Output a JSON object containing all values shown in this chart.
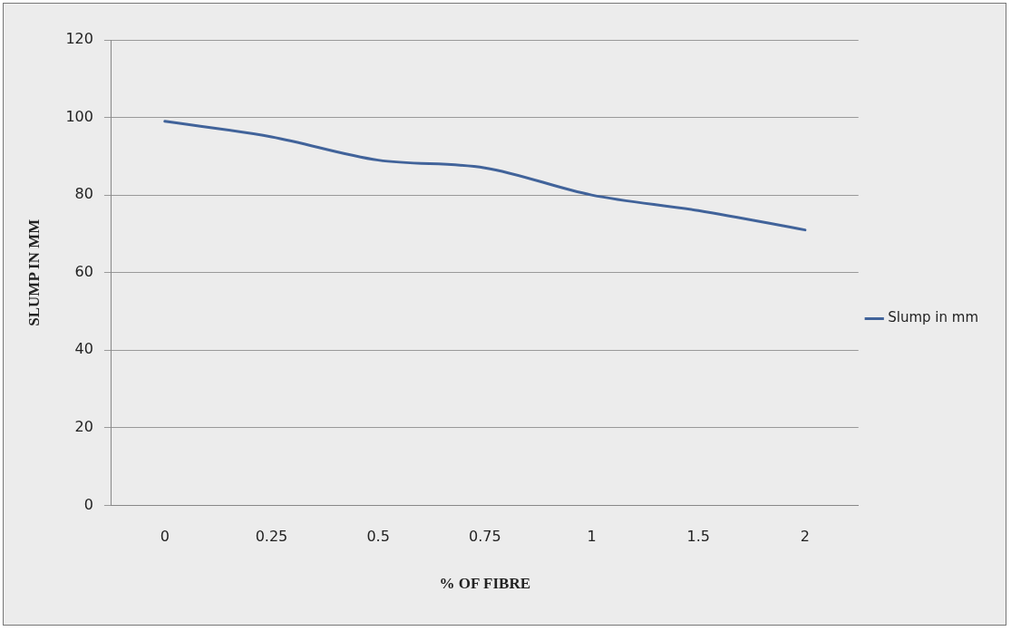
{
  "chart_data": {
    "type": "line",
    "xlabel": "% OF FIBRE",
    "ylabel": "SLUMP IN MM",
    "categories": [
      "0",
      "0.25",
      "0.5",
      "0.75",
      "1",
      "1.5",
      "2"
    ],
    "series": [
      {
        "name": "Slump in mm",
        "color": "#41639a",
        "values": [
          99,
          95,
          89,
          87,
          80,
          76,
          71
        ]
      }
    ],
    "ylim": [
      0,
      120
    ],
    "yticks": [
      0,
      20,
      40,
      60,
      80,
      100,
      120
    ],
    "grid": "y",
    "legend": "right",
    "marker": "none",
    "line_style": "solid"
  }
}
